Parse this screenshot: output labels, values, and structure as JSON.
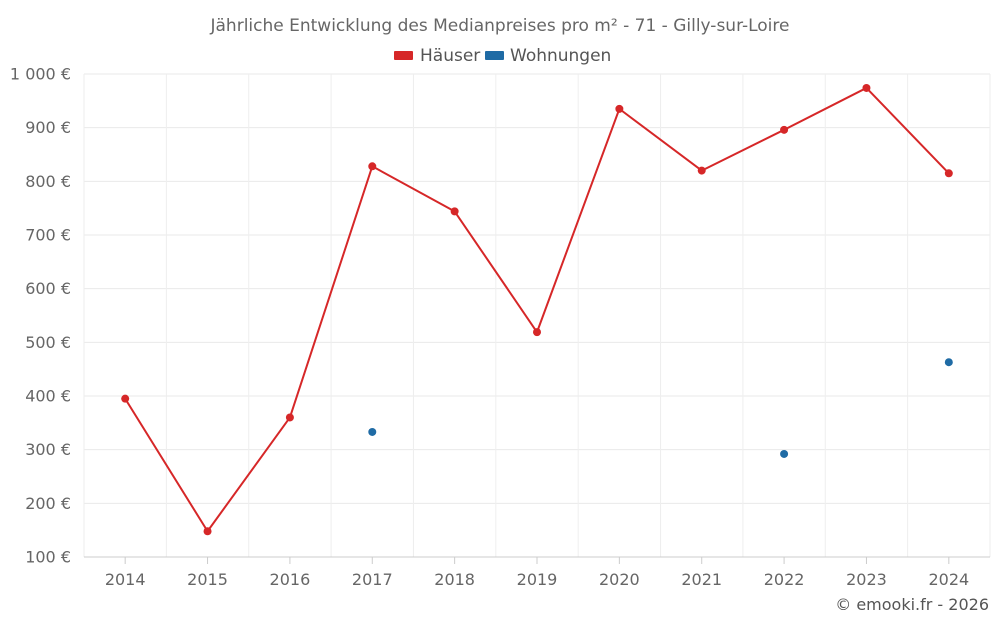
{
  "chart_data": {
    "type": "line",
    "title": "Jährliche Entwicklung des Medianpreises pro m² - 71 - Gilly-sur-Loire",
    "categories": [
      "2014",
      "2015",
      "2016",
      "2017",
      "2018",
      "2019",
      "2020",
      "2021",
      "2022",
      "2023",
      "2024"
    ],
    "series": [
      {
        "name": "Häuser",
        "color": "#d62728",
        "values": [
          395,
          148,
          360,
          828,
          744,
          519,
          935,
          820,
          896,
          974,
          815
        ]
      },
      {
        "name": "Wohnungen",
        "color": "#1f6ba5",
        "values": [
          null,
          null,
          null,
          333,
          null,
          null,
          null,
          null,
          292,
          null,
          463
        ]
      }
    ],
    "y_ticks": [
      "100 €",
      "200 €",
      "300 €",
      "400 €",
      "500 €",
      "600 €",
      "700 €",
      "800 €",
      "900 €",
      "1 000 €"
    ],
    "ylim": [
      100,
      1000
    ],
    "grid": true,
    "legend_position": "top-center",
    "credit": "© emooki.fr - 2026"
  }
}
